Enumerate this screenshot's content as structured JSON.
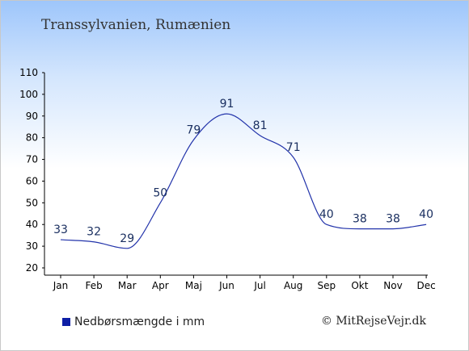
{
  "title": "Transsylvanien, Rumænien",
  "legend_label": "Nedbørsmængde i mm",
  "credit": "© MitRejseVejr.dk",
  "colors": {
    "line": "#2233aa",
    "legend_swatch": "#0e1fa6",
    "background_top": "#9ec6fb"
  },
  "chart_data": {
    "type": "line",
    "categories": [
      "Jan",
      "Feb",
      "Mar",
      "Apr",
      "Maj",
      "Jun",
      "Jul",
      "Aug",
      "Sep",
      "Okt",
      "Nov",
      "Dec"
    ],
    "series": [
      {
        "name": "Nedbørsmængde i mm",
        "values": [
          33,
          32,
          29,
          50,
          79,
          91,
          81,
          71,
          40,
          38,
          38,
          40
        ]
      }
    ],
    "ylim": [
      20,
      110
    ],
    "yticks": [
      20,
      30,
      40,
      50,
      60,
      70,
      80,
      90,
      100,
      110
    ],
    "grid": false,
    "legend": "bottom-left"
  }
}
